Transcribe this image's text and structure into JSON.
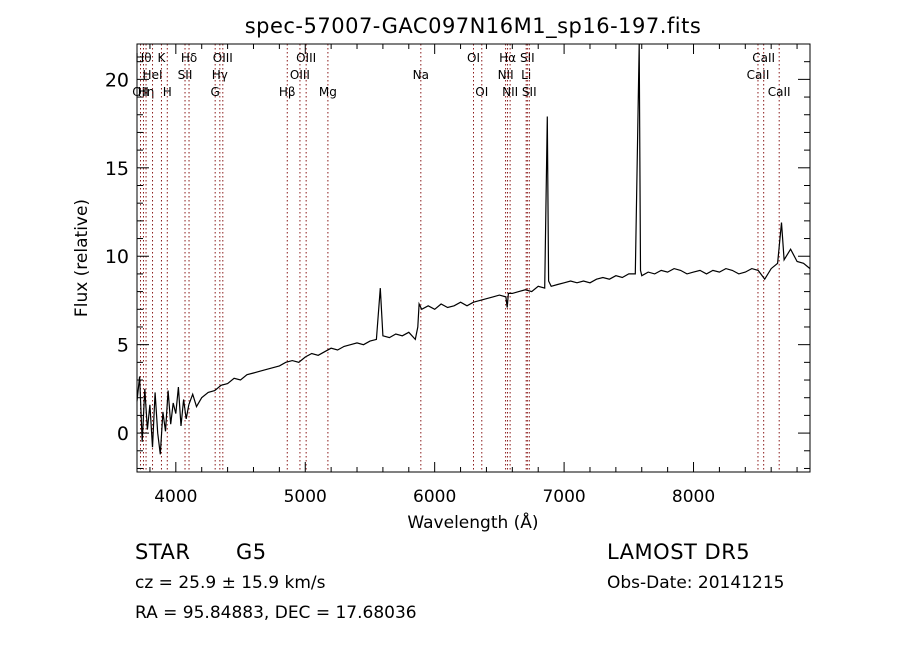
{
  "chart_data": {
    "type": "line",
    "title": "spec-57007-GAC097N16M1_sp16-197.fits",
    "xlabel": "Wavelength (Å)",
    "ylabel": "Flux (relative)",
    "xlim": [
      3700,
      8900
    ],
    "ylim": [
      -2.2,
      22
    ],
    "xticks": [
      4000,
      5000,
      6000,
      7000,
      8000
    ],
    "yticks": [
      0,
      5,
      10,
      15,
      20
    ],
    "grid": false,
    "line_color": "#000000",
    "marker_color": "#8b1a1a",
    "series": [
      {
        "x": [
          3700,
          3720,
          3740,
          3760,
          3780,
          3800,
          3820,
          3840,
          3860,
          3880,
          3900,
          3920,
          3940,
          3960,
          3980,
          4000,
          4020,
          4040,
          4060,
          4080,
          4100,
          4130,
          4160,
          4200,
          4250,
          4300,
          4350,
          4400,
          4450,
          4500,
          4550,
          4600,
          4650,
          4700,
          4750,
          4800,
          4850,
          4900,
          4950,
          5000,
          5050,
          5100,
          5150,
          5200,
          5250,
          5300,
          5350,
          5400,
          5450,
          5500,
          5550,
          5580,
          5600,
          5650,
          5700,
          5750,
          5800,
          5850,
          5870,
          5880,
          5900,
          5950,
          6000,
          6050,
          6100,
          6150,
          6200,
          6250,
          6300,
          6350,
          6400,
          6450,
          6500,
          6550,
          6560,
          6570,
          6600,
          6650,
          6700,
          6750,
          6800,
          6850,
          6870,
          6880,
          6900,
          6950,
          7000,
          7050,
          7100,
          7150,
          7200,
          7250,
          7300,
          7350,
          7400,
          7450,
          7500,
          7550,
          7580,
          7590,
          7600,
          7650,
          7700,
          7750,
          7800,
          7850,
          7900,
          7950,
          8000,
          8050,
          8100,
          8150,
          8200,
          8250,
          8300,
          8350,
          8400,
          8450,
          8500,
          8550,
          8600,
          8650,
          8680,
          8700,
          8750,
          8800,
          8850,
          8900
        ],
        "values": [
          1.8,
          3.2,
          -0.5,
          2.5,
          0.2,
          1.6,
          -0.8,
          2.3,
          0.0,
          -1.2,
          1.2,
          0.1,
          2.4,
          0.5,
          1.7,
          1.1,
          2.6,
          0.4,
          1.9,
          0.8,
          1.6,
          2.2,
          1.5,
          2.0,
          2.3,
          2.4,
          2.7,
          2.8,
          3.1,
          3.0,
          3.3,
          3.4,
          3.5,
          3.6,
          3.7,
          3.8,
          4.0,
          4.1,
          4.0,
          4.3,
          4.5,
          4.4,
          4.6,
          4.8,
          4.7,
          4.9,
          5.0,
          5.1,
          5.0,
          5.2,
          5.3,
          8.2,
          5.5,
          5.4,
          5.6,
          5.5,
          5.7,
          5.3,
          6.0,
          7.3,
          7.0,
          7.2,
          7.0,
          7.3,
          7.1,
          7.2,
          7.4,
          7.2,
          7.4,
          7.5,
          7.6,
          7.7,
          7.8,
          7.7,
          7.1,
          7.9,
          7.9,
          8.0,
          8.1,
          8.0,
          8.3,
          8.2,
          17.9,
          8.6,
          8.3,
          8.4,
          8.5,
          8.6,
          8.5,
          8.6,
          8.5,
          8.7,
          8.8,
          8.7,
          8.9,
          8.8,
          9.0,
          9.0,
          22.0,
          9.2,
          8.9,
          9.1,
          9.0,
          9.2,
          9.1,
          9.3,
          9.2,
          9.0,
          9.1,
          9.2,
          9.0,
          9.2,
          9.1,
          9.3,
          9.2,
          9.0,
          9.1,
          9.3,
          9.2,
          8.7,
          9.3,
          9.6,
          11.9,
          9.8,
          10.4,
          9.7,
          9.6,
          9.3
        ]
      }
    ],
    "line_markers": [
      {
        "x": 3727,
        "label": "OII",
        "row": 3
      },
      {
        "x": 3750,
        "label": "Hθ",
        "row": 1
      },
      {
        "x": 3770,
        "label": "Hη",
        "row": 3
      },
      {
        "x": 3820,
        "label": "HeI",
        "row": 2
      },
      {
        "x": 3889,
        "label": "K",
        "row": 1
      },
      {
        "x": 3934,
        "label": "H",
        "row": 3
      },
      {
        "x": 4071,
        "label": "SII",
        "row": 2
      },
      {
        "x": 4102,
        "label": "Hδ",
        "row": 1
      },
      {
        "x": 4304,
        "label": "G",
        "row": 3
      },
      {
        "x": 4340,
        "label": "Hγ",
        "row": 2
      },
      {
        "x": 4363,
        "label": "OIII",
        "row": 1
      },
      {
        "x": 4861,
        "label": "Hβ",
        "row": 3
      },
      {
        "x": 4959,
        "label": "OIII",
        "row": 2
      },
      {
        "x": 5007,
        "label": "OIII",
        "row": 1
      },
      {
        "x": 5175,
        "label": "Mg",
        "row": 3
      },
      {
        "x": 5893,
        "label": "Na",
        "row": 2
      },
      {
        "x": 6300,
        "label": "OI",
        "row": 1
      },
      {
        "x": 6364,
        "label": "OI",
        "row": 3
      },
      {
        "x": 6548,
        "label": "NII",
        "row": 2
      },
      {
        "x": 6563,
        "label": "Hα",
        "row": 1
      },
      {
        "x": 6583,
        "label": "NII",
        "row": 3
      },
      {
        "x": 6707,
        "label": "Li",
        "row": 2
      },
      {
        "x": 6716,
        "label": "SII",
        "row": 1
      },
      {
        "x": 6731,
        "label": "SII",
        "row": 3
      },
      {
        "x": 8498,
        "label": "CaII",
        "row": 2
      },
      {
        "x": 8542,
        "label": "CaII",
        "row": 1
      },
      {
        "x": 8662,
        "label": "CaII",
        "row": 3
      }
    ]
  },
  "info": {
    "object_class": "STAR",
    "subclass": "G5",
    "survey": "LAMOST DR5",
    "cz": "cz = 25.9 ± 15.9 km/s",
    "obs_date": "Obs-Date: 20141215",
    "coords": "RA =  95.84883, DEC =  17.68036"
  }
}
